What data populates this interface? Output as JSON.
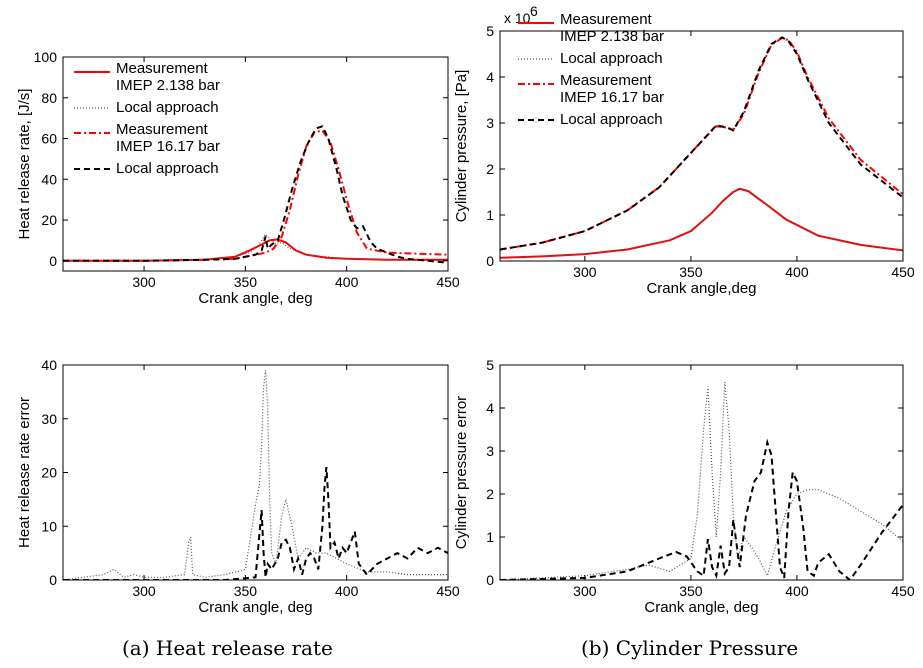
{
  "chart_data": [
    {
      "id": "hrr",
      "type": "line",
      "xlabel": "Crank angle, deg",
      "ylabel": "Heat release rate, [J/s]",
      "xlim": [
        260,
        450
      ],
      "ylim": [
        -5,
        100
      ],
      "xticks": [
        300,
        350,
        400,
        450
      ],
      "yticks": [
        0,
        20,
        40,
        60,
        80,
        100
      ],
      "legend_position": "top-left",
      "series": [
        {
          "legend": [
            "Measurement",
            "IMEP 2.138 bar"
          ],
          "color": "#ff0000",
          "style": "solid",
          "x": [
            260,
            300,
            330,
            345,
            352,
            358,
            362,
            366,
            370,
            375,
            380,
            390,
            400,
            420,
            450
          ],
          "y": [
            0,
            0,
            0.5,
            2,
            5,
            8,
            10,
            10.5,
            9,
            5,
            3,
            1.5,
            1,
            0.5,
            0.5
          ]
        },
        {
          "legend": [
            "Local approach"
          ],
          "color": "#555555",
          "style": "dotted",
          "x": [
            260,
            300,
            330,
            345,
            352,
            356,
            358,
            360,
            362,
            365,
            368,
            372,
            380,
            400,
            420,
            450
          ],
          "y": [
            0,
            0,
            0.5,
            2,
            4,
            7,
            10,
            13,
            11,
            8,
            9,
            6,
            3,
            1,
            0.5,
            0
          ]
        },
        {
          "legend": [
            "Measurement",
            "IMEP 16.17 bar"
          ],
          "color": "#ff0000",
          "style": "dashdot",
          "x": [
            260,
            300,
            330,
            345,
            355,
            360,
            364,
            368,
            372,
            376,
            380,
            384,
            388,
            392,
            396,
            400,
            405,
            410,
            420,
            450
          ],
          "y": [
            0,
            0,
            0.5,
            1,
            3,
            4,
            6,
            12,
            25,
            42,
            56,
            63,
            64,
            58,
            45,
            30,
            14,
            6,
            4,
            3
          ]
        },
        {
          "legend": [
            "Local approach"
          ],
          "color": "#000000",
          "style": "dashed",
          "x": [
            260,
            300,
            330,
            345,
            355,
            358,
            360,
            361,
            363,
            366,
            369,
            373,
            377,
            381,
            385,
            388,
            391,
            395,
            398,
            402,
            405,
            408,
            412,
            415,
            420,
            425,
            430,
            440,
            450
          ],
          "y": [
            0,
            0,
            0.5,
            1,
            3,
            5,
            12,
            6,
            8,
            10,
            20,
            35,
            48,
            58,
            65,
            66,
            60,
            45,
            32,
            20,
            16,
            17,
            9,
            6,
            4,
            2,
            1,
            0,
            -1
          ]
        }
      ]
    },
    {
      "id": "pressure",
      "type": "line",
      "xlabel": "Crank angle,deg",
      "ylabel": "Cylinder pressure, [Pa]",
      "multiplier_label": "x 10",
      "multiplier_exp": "6",
      "xlim": [
        260,
        450
      ],
      "ylim": [
        0,
        5
      ],
      "xticks": [
        300,
        350,
        400,
        450
      ],
      "yticks": [
        0,
        1,
        2,
        3,
        4,
        5
      ],
      "legend_position": "top-left",
      "series": [
        {
          "legend": [
            "Measurement",
            "IMEP 2.138 bar"
          ],
          "color": "#ff0000",
          "style": "solid",
          "x": [
            260,
            280,
            300,
            320,
            340,
            350,
            360,
            365,
            370,
            373,
            377,
            385,
            395,
            410,
            430,
            450
          ],
          "y": [
            0.07,
            0.1,
            0.15,
            0.25,
            0.45,
            0.65,
            1.05,
            1.3,
            1.5,
            1.57,
            1.52,
            1.25,
            0.9,
            0.55,
            0.35,
            0.23
          ]
        },
        {
          "legend": [
            "Local approach"
          ],
          "color": "#555555",
          "style": "dotted",
          "x": [
            260,
            280,
            300,
            320,
            340,
            350,
            360,
            365,
            370,
            373,
            377,
            385,
            395,
            410,
            430,
            450
          ],
          "y": [
            0.07,
            0.1,
            0.15,
            0.25,
            0.45,
            0.65,
            1.05,
            1.3,
            1.5,
            1.58,
            1.53,
            1.26,
            0.91,
            0.56,
            0.36,
            0.23
          ]
        },
        {
          "legend": [
            "Measurement",
            "IMEP 16.17 bar"
          ],
          "color": "#ff0000",
          "style": "dashdot",
          "x": [
            260,
            280,
            300,
            320,
            335,
            345,
            355,
            362,
            367,
            370,
            375,
            382,
            388,
            393,
            396,
            400,
            405,
            415,
            430,
            450
          ],
          "y": [
            0.25,
            0.4,
            0.65,
            1.1,
            1.6,
            2.1,
            2.6,
            2.93,
            2.9,
            2.85,
            3.2,
            4.1,
            4.7,
            4.85,
            4.8,
            4.55,
            4.0,
            3.1,
            2.2,
            1.45
          ]
        },
        {
          "legend": [
            "Local approach"
          ],
          "color": "#000000",
          "style": "dashed",
          "x": [
            260,
            280,
            300,
            320,
            335,
            345,
            355,
            362,
            367,
            370,
            375,
            382,
            388,
            393,
            396,
            400,
            405,
            415,
            430,
            450
          ],
          "y": [
            0.25,
            0.4,
            0.65,
            1.1,
            1.6,
            2.1,
            2.6,
            2.95,
            2.9,
            2.84,
            3.25,
            4.15,
            4.72,
            4.86,
            4.78,
            4.5,
            3.95,
            3.0,
            2.1,
            1.38
          ]
        }
      ]
    },
    {
      "id": "hrr_error",
      "type": "line",
      "xlabel": "Crank angle, deg",
      "ylabel": "Heat release rate error",
      "xlim": [
        260,
        450
      ],
      "ylim": [
        0,
        40
      ],
      "xticks": [
        300,
        350,
        400,
        450
      ],
      "yticks": [
        0,
        10,
        20,
        30,
        40
      ],
      "series": [
        {
          "color": "#555555",
          "style": "dotted",
          "x": [
            260,
            270,
            280,
            285,
            290,
            295,
            300,
            310,
            320,
            322,
            323,
            324,
            330,
            340,
            350,
            355,
            357,
            358,
            359,
            360,
            361,
            362,
            363,
            365,
            368,
            370,
            373,
            376,
            380,
            385,
            390,
            395,
            400,
            410,
            420,
            430,
            440,
            450
          ],
          "y": [
            0,
            0.5,
            1,
            2,
            0.5,
            1,
            0.5,
            0.5,
            1,
            7,
            8,
            1,
            0.5,
            1,
            2,
            14,
            18,
            25,
            36,
            39,
            32,
            15,
            5,
            3,
            12,
            15,
            10,
            4,
            6,
            5,
            5,
            4,
            3,
            1.5,
            1.5,
            1,
            1,
            1
          ]
        },
        {
          "color": "#000000",
          "style": "dashed",
          "x": [
            260,
            300,
            340,
            355,
            358,
            359,
            360,
            361,
            363,
            366,
            368,
            370,
            372,
            374,
            376,
            378,
            380,
            382,
            384,
            386,
            388,
            389,
            390,
            391,
            392,
            394,
            396,
            398,
            400,
            402,
            404,
            406,
            408,
            410,
            415,
            420,
            425,
            430,
            435,
            440,
            445,
            450
          ],
          "y": [
            0,
            0,
            0,
            0.5,
            13,
            5,
            0.5,
            3,
            2,
            4,
            7,
            7.5,
            6,
            2,
            4,
            1,
            4,
            5,
            4,
            2,
            10,
            17,
            21,
            15,
            6,
            7,
            4,
            6,
            5,
            7,
            9,
            3,
            2,
            1,
            3,
            4,
            5,
            4,
            6,
            5,
            6,
            5
          ]
        }
      ]
    },
    {
      "id": "pressure_error",
      "type": "line",
      "xlabel": "Crank angle, deg",
      "ylabel": "Cylinder pressure error",
      "xlim": [
        260,
        450
      ],
      "ylim": [
        0,
        5
      ],
      "xticks": [
        300,
        350,
        400,
        450
      ],
      "yticks": [
        0,
        1,
        2,
        3,
        4,
        5
      ],
      "series": [
        {
          "color": "#555555",
          "style": "dotted",
          "x": [
            260,
            280,
            300,
            320,
            330,
            340,
            350,
            353,
            356,
            358,
            360,
            362,
            364,
            366,
            368,
            370,
            372,
            375,
            378,
            382,
            386,
            390,
            395,
            400,
            405,
            410,
            420,
            430,
            440,
            450
          ],
          "y": [
            0,
            0.05,
            0.1,
            0.25,
            0.35,
            0.2,
            0.5,
            1.5,
            3.5,
            4.5,
            2.5,
            1,
            2.5,
            4.6,
            3.5,
            1.5,
            0.5,
            1,
            0.8,
            0.5,
            0.1,
            0.8,
            1.6,
            2,
            2.1,
            2.1,
            1.9,
            1.6,
            1.3,
            0.9
          ]
        },
        {
          "color": "#000000",
          "style": "dashed",
          "x": [
            260,
            300,
            320,
            335,
            343,
            348,
            353,
            356,
            358,
            360,
            362,
            364,
            366,
            368,
            370,
            373,
            376,
            380,
            383,
            386,
            388,
            390,
            392,
            394,
            396,
            398,
            400,
            403,
            405,
            408,
            410,
            415,
            420,
            425,
            430,
            440,
            450
          ],
          "y": [
            0,
            0.05,
            0.2,
            0.5,
            0.65,
            0.55,
            0.2,
            0.1,
            0.95,
            0.3,
            0.1,
            0.8,
            0.15,
            0.3,
            1.4,
            0.3,
            1.5,
            2.3,
            2.5,
            3.2,
            2.9,
            1.6,
            0.3,
            0.05,
            1.6,
            2.5,
            2.3,
            1.2,
            0.2,
            0.1,
            0.4,
            0.6,
            0.2,
            0,
            0.35,
            1.1,
            1.75
          ]
        }
      ]
    }
  ],
  "captions": {
    "a": "(a) Heat release rate",
    "b": "(b) Cylinder Pressure"
  }
}
